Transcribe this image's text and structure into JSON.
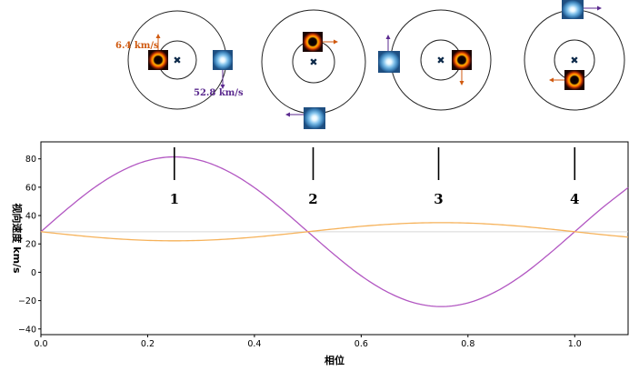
{
  "chart_data": {
    "type": "line",
    "xlabel": "相位",
    "ylabel": "视向速度 km/s",
    "xlim": [
      0.0,
      1.1
    ],
    "ylim": [
      -44,
      92
    ],
    "xticks": [
      0.0,
      0.2,
      0.4,
      0.6,
      0.8,
      1.0
    ],
    "xtick_labels": [
      "0.0",
      "0.2",
      "0.4",
      "0.6",
      "0.8",
      "1.0"
    ],
    "yticks": [
      -40,
      -20,
      0,
      20,
      40,
      60,
      80
    ],
    "ytick_labels": [
      "−40",
      "−20",
      "0",
      "20",
      "40",
      "60",
      "80"
    ],
    "grid": false,
    "systemic_velocity": 28.6,
    "series": [
      {
        "color": "#b257c2",
        "x": [
          0.0,
          0.05,
          0.1,
          0.15,
          0.2,
          0.25,
          0.3,
          0.35,
          0.4,
          0.45,
          0.5,
          0.55,
          0.6,
          0.65,
          0.7,
          0.75,
          0.8,
          0.85,
          0.9,
          0.95,
          1.0,
          1.05,
          1.1
        ],
        "y": [
          28.6,
          44.9,
          59.7,
          71.3,
          78.8,
          81.4,
          78.8,
          71.3,
          59.7,
          44.9,
          28.6,
          12.3,
          -2.5,
          -14.1,
          -21.6,
          -24.2,
          -21.6,
          -14.1,
          -2.5,
          12.3,
          28.6,
          44.9,
          59.7
        ]
      },
      {
        "color": "#f6b25a",
        "x": [
          0.0,
          0.05,
          0.1,
          0.15,
          0.2,
          0.25,
          0.3,
          0.35,
          0.4,
          0.45,
          0.5,
          0.55,
          0.6,
          0.65,
          0.7,
          0.75,
          0.8,
          0.85,
          0.9,
          0.95,
          1.0,
          1.05,
          1.1
        ],
        "y": [
          28.6,
          26.6,
          24.8,
          23.4,
          22.5,
          22.2,
          22.5,
          23.4,
          24.8,
          26.6,
          28.6,
          30.6,
          32.4,
          33.8,
          34.7,
          35.0,
          34.7,
          33.8,
          32.4,
          30.6,
          28.6,
          26.6,
          24.8
        ]
      }
    ],
    "phase_markers": [
      {
        "label": "1",
        "x": 0.25
      },
      {
        "label": "2",
        "x": 0.51
      },
      {
        "label": "3",
        "x": 0.745
      },
      {
        "label": "4",
        "x": 1.0
      }
    ],
    "velocity_labels": {
      "small": "6.4 km/s",
      "large": "52.8 km/s"
    },
    "colors": {
      "small_velocity": "#d05a10",
      "large_velocity": "#5b2a8f",
      "center_marker": "#0d2a4a"
    }
  }
}
